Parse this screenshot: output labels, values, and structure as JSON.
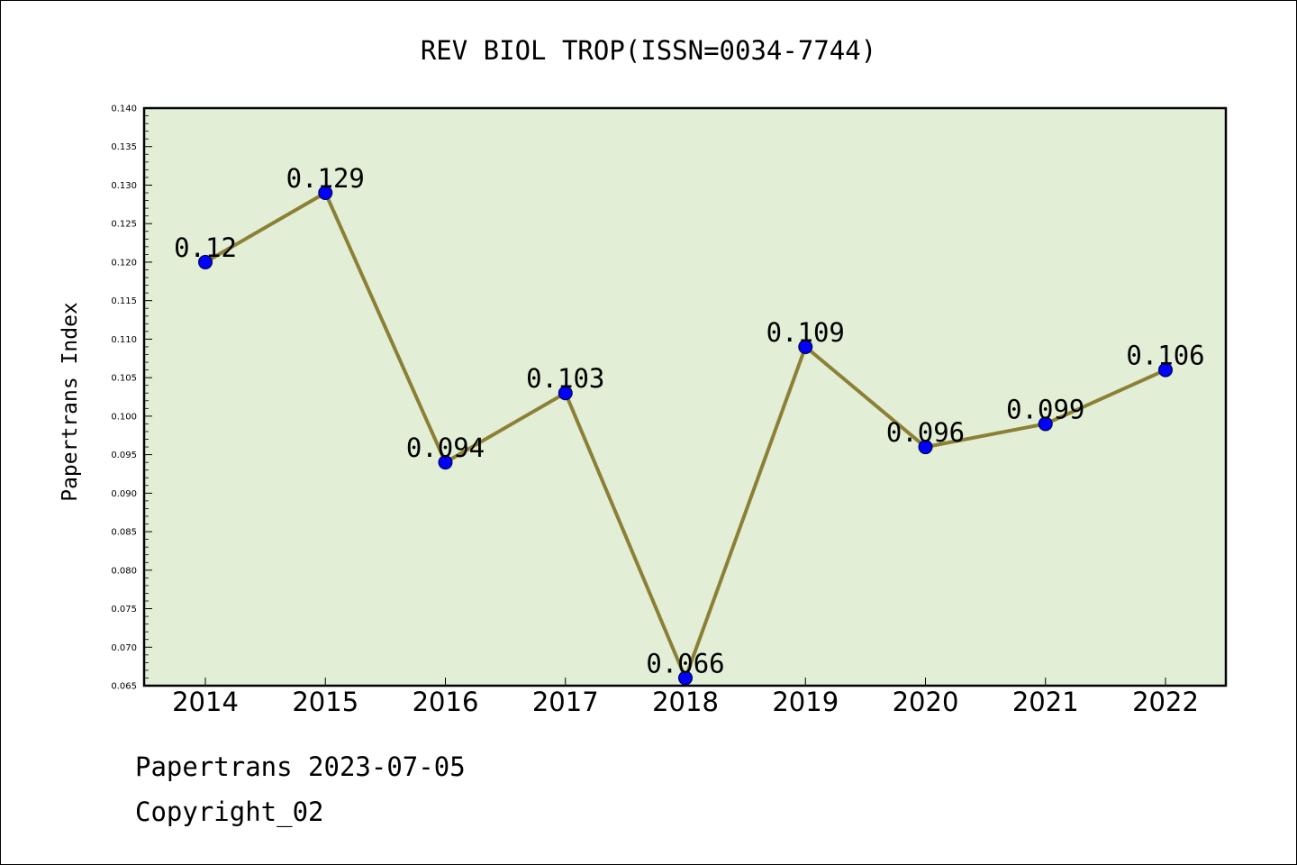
{
  "chart_data": {
    "type": "line",
    "title": "REV BIOL TROP(ISSN=0034-7744)",
    "xlabel": "",
    "ylabel": "Papertrans Index",
    "categories": [
      "2014",
      "2015",
      "2016",
      "2017",
      "2018",
      "2019",
      "2020",
      "2021",
      "2022"
    ],
    "series": [
      {
        "values": [
          0.12,
          0.129,
          0.094,
          0.103,
          0.066,
          0.109,
          0.096,
          0.099,
          0.106
        ]
      }
    ],
    "data_labels": [
      "0.12",
      "0.129",
      "0.094",
      "0.103",
      "0.066",
      "0.109",
      "0.096",
      "0.099",
      "0.106"
    ],
    "ylim": [
      0.065,
      0.14
    ],
    "y_ticks": [
      "0.065",
      "0.070",
      "0.075",
      "0.080",
      "0.085",
      "0.090",
      "0.095",
      "0.100",
      "0.105",
      "0.110",
      "0.115",
      "0.120",
      "0.125",
      "0.130",
      "0.135",
      "0.140"
    ],
    "grid": false,
    "colors": {
      "plot_background": "#e2efd6",
      "line": "#8b8035",
      "marker": "#0000ff"
    }
  },
  "footer": {
    "date_line": "Papertrans 2023-07-05",
    "copyright": "Copyright_02"
  }
}
